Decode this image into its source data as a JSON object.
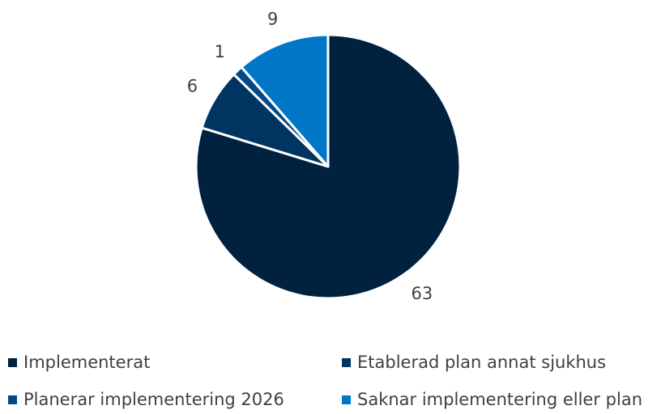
{
  "chart_data": {
    "type": "pie",
    "title": "",
    "series": [
      {
        "categories": [
          "Implementerat",
          "Etablerad plan annat sjukhus",
          "Planerar implementering 2026",
          "Saknar implementering eller plan"
        ],
        "values": [
          63,
          6,
          1,
          9
        ],
        "colors": [
          "#00223f",
          "#003461",
          "#004a8a",
          "#0077c8"
        ]
      }
    ],
    "data_labels": [
      "63",
      "6",
      "1",
      "9"
    ],
    "legend_position": "bottom",
    "legend": [
      {
        "label": "Implementerat",
        "color": "#00223f"
      },
      {
        "label": "Etablerad plan annat sjukhus",
        "color": "#003461"
      },
      {
        "label": "Planerar implementering 2026",
        "color": "#004a8a"
      },
      {
        "label": "Saknar implementering eller plan",
        "color": "#0077c8"
      }
    ],
    "start_angle": "12 o'clock",
    "direction": "clockwise",
    "slice_border_color": "#ffffff"
  }
}
